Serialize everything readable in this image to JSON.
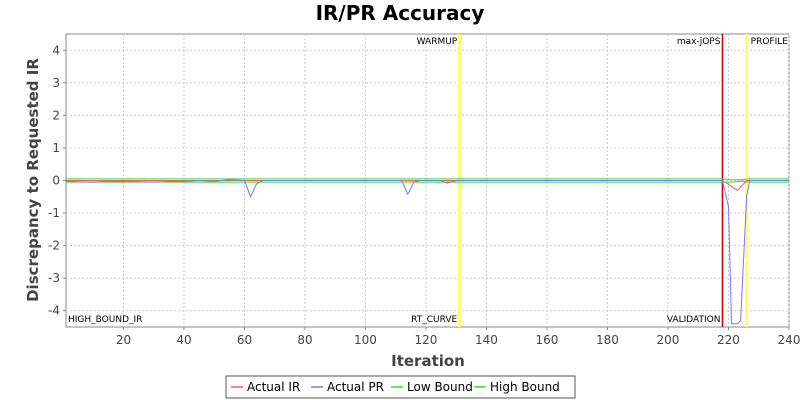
{
  "chart_data": {
    "type": "line",
    "title": "IR/PR Accuracy",
    "xlabel": "Iteration",
    "ylabel": "Discrepancy to Requested IR",
    "xlim": [
      1,
      240
    ],
    "ylim": [
      -4.5,
      4.5
    ],
    "xticks": [
      20,
      40,
      60,
      80,
      100,
      120,
      140,
      160,
      180,
      200,
      220,
      240
    ],
    "yticks": [
      -4,
      -3,
      -2,
      -1,
      0,
      1,
      2,
      3,
      4
    ],
    "grid": true,
    "legend": "bottom",
    "series": [
      {
        "name": "Actual IR",
        "color": "#ff5555",
        "points": [
          [
            1,
            0
          ],
          [
            130,
            0
          ],
          [
            218,
            0
          ],
          [
            223,
            -0.3
          ],
          [
            226,
            0
          ],
          [
            240,
            0
          ]
        ]
      },
      {
        "name": "Actual PR",
        "color": "#7777ff",
        "points": [
          [
            1,
            -0.02
          ],
          [
            5,
            -0.04
          ],
          [
            10,
            -0.05
          ],
          [
            15,
            -0.02
          ],
          [
            20,
            -0.03
          ],
          [
            25,
            -0.04
          ],
          [
            30,
            -0.05
          ],
          [
            35,
            -0.03
          ],
          [
            40,
            -0.02
          ],
          [
            45,
            0
          ],
          [
            50,
            -0.02
          ],
          [
            55,
            0.02
          ],
          [
            60,
            0
          ],
          [
            62,
            -0.5
          ],
          [
            64,
            -0.1
          ],
          [
            66,
            0
          ],
          [
            80,
            0
          ],
          [
            100,
            0
          ],
          [
            112,
            0
          ],
          [
            114,
            -0.42
          ],
          [
            116,
            -0.05
          ],
          [
            118,
            0
          ],
          [
            125,
            0
          ],
          [
            127,
            -0.08
          ],
          [
            130,
            0
          ],
          [
            218,
            0
          ],
          [
            220,
            -0.8
          ],
          [
            221,
            -4.4
          ],
          [
            223,
            -4.4
          ],
          [
            224,
            -4.3
          ],
          [
            226,
            -0.5
          ],
          [
            227,
            0
          ],
          [
            240,
            0
          ]
        ]
      },
      {
        "name": "Low Bound",
        "color": "#33dd33",
        "points": [
          [
            1,
            -0.05
          ],
          [
            130,
            -0.05
          ],
          [
            218,
            -0.05
          ],
          [
            221,
            -0.05
          ],
          [
            224,
            -0.02
          ],
          [
            227,
            -0.05
          ],
          [
            240,
            -0.05
          ]
        ]
      },
      {
        "name": "High Bound",
        "color": "#33dd33",
        "points": [
          [
            1,
            0.05
          ],
          [
            130,
            0.05
          ],
          [
            218,
            0.05
          ],
          [
            221,
            0.02
          ],
          [
            224,
            0.02
          ],
          [
            227,
            0.05
          ],
          [
            240,
            0.05
          ]
        ]
      }
    ],
    "markers": [
      {
        "x": 131,
        "label": "WARMUP",
        "color": "#ffff66",
        "label_pos": "top"
      },
      {
        "x": 131,
        "label": "RT_CURVE",
        "color": "#ffff66",
        "label_pos": "bottom"
      },
      {
        "x": 218,
        "label": "max-jOPS",
        "color": "#cc0000",
        "label_pos": "top"
      },
      {
        "x": 218,
        "label": "VALIDATION",
        "color": "#cc0000",
        "label_pos": "bottom"
      },
      {
        "x": 226,
        "label": "PROFILE",
        "color": "#ffff66",
        "label_pos": "top"
      }
    ],
    "corner_annotation": "HIGH_BOUND_IR"
  }
}
